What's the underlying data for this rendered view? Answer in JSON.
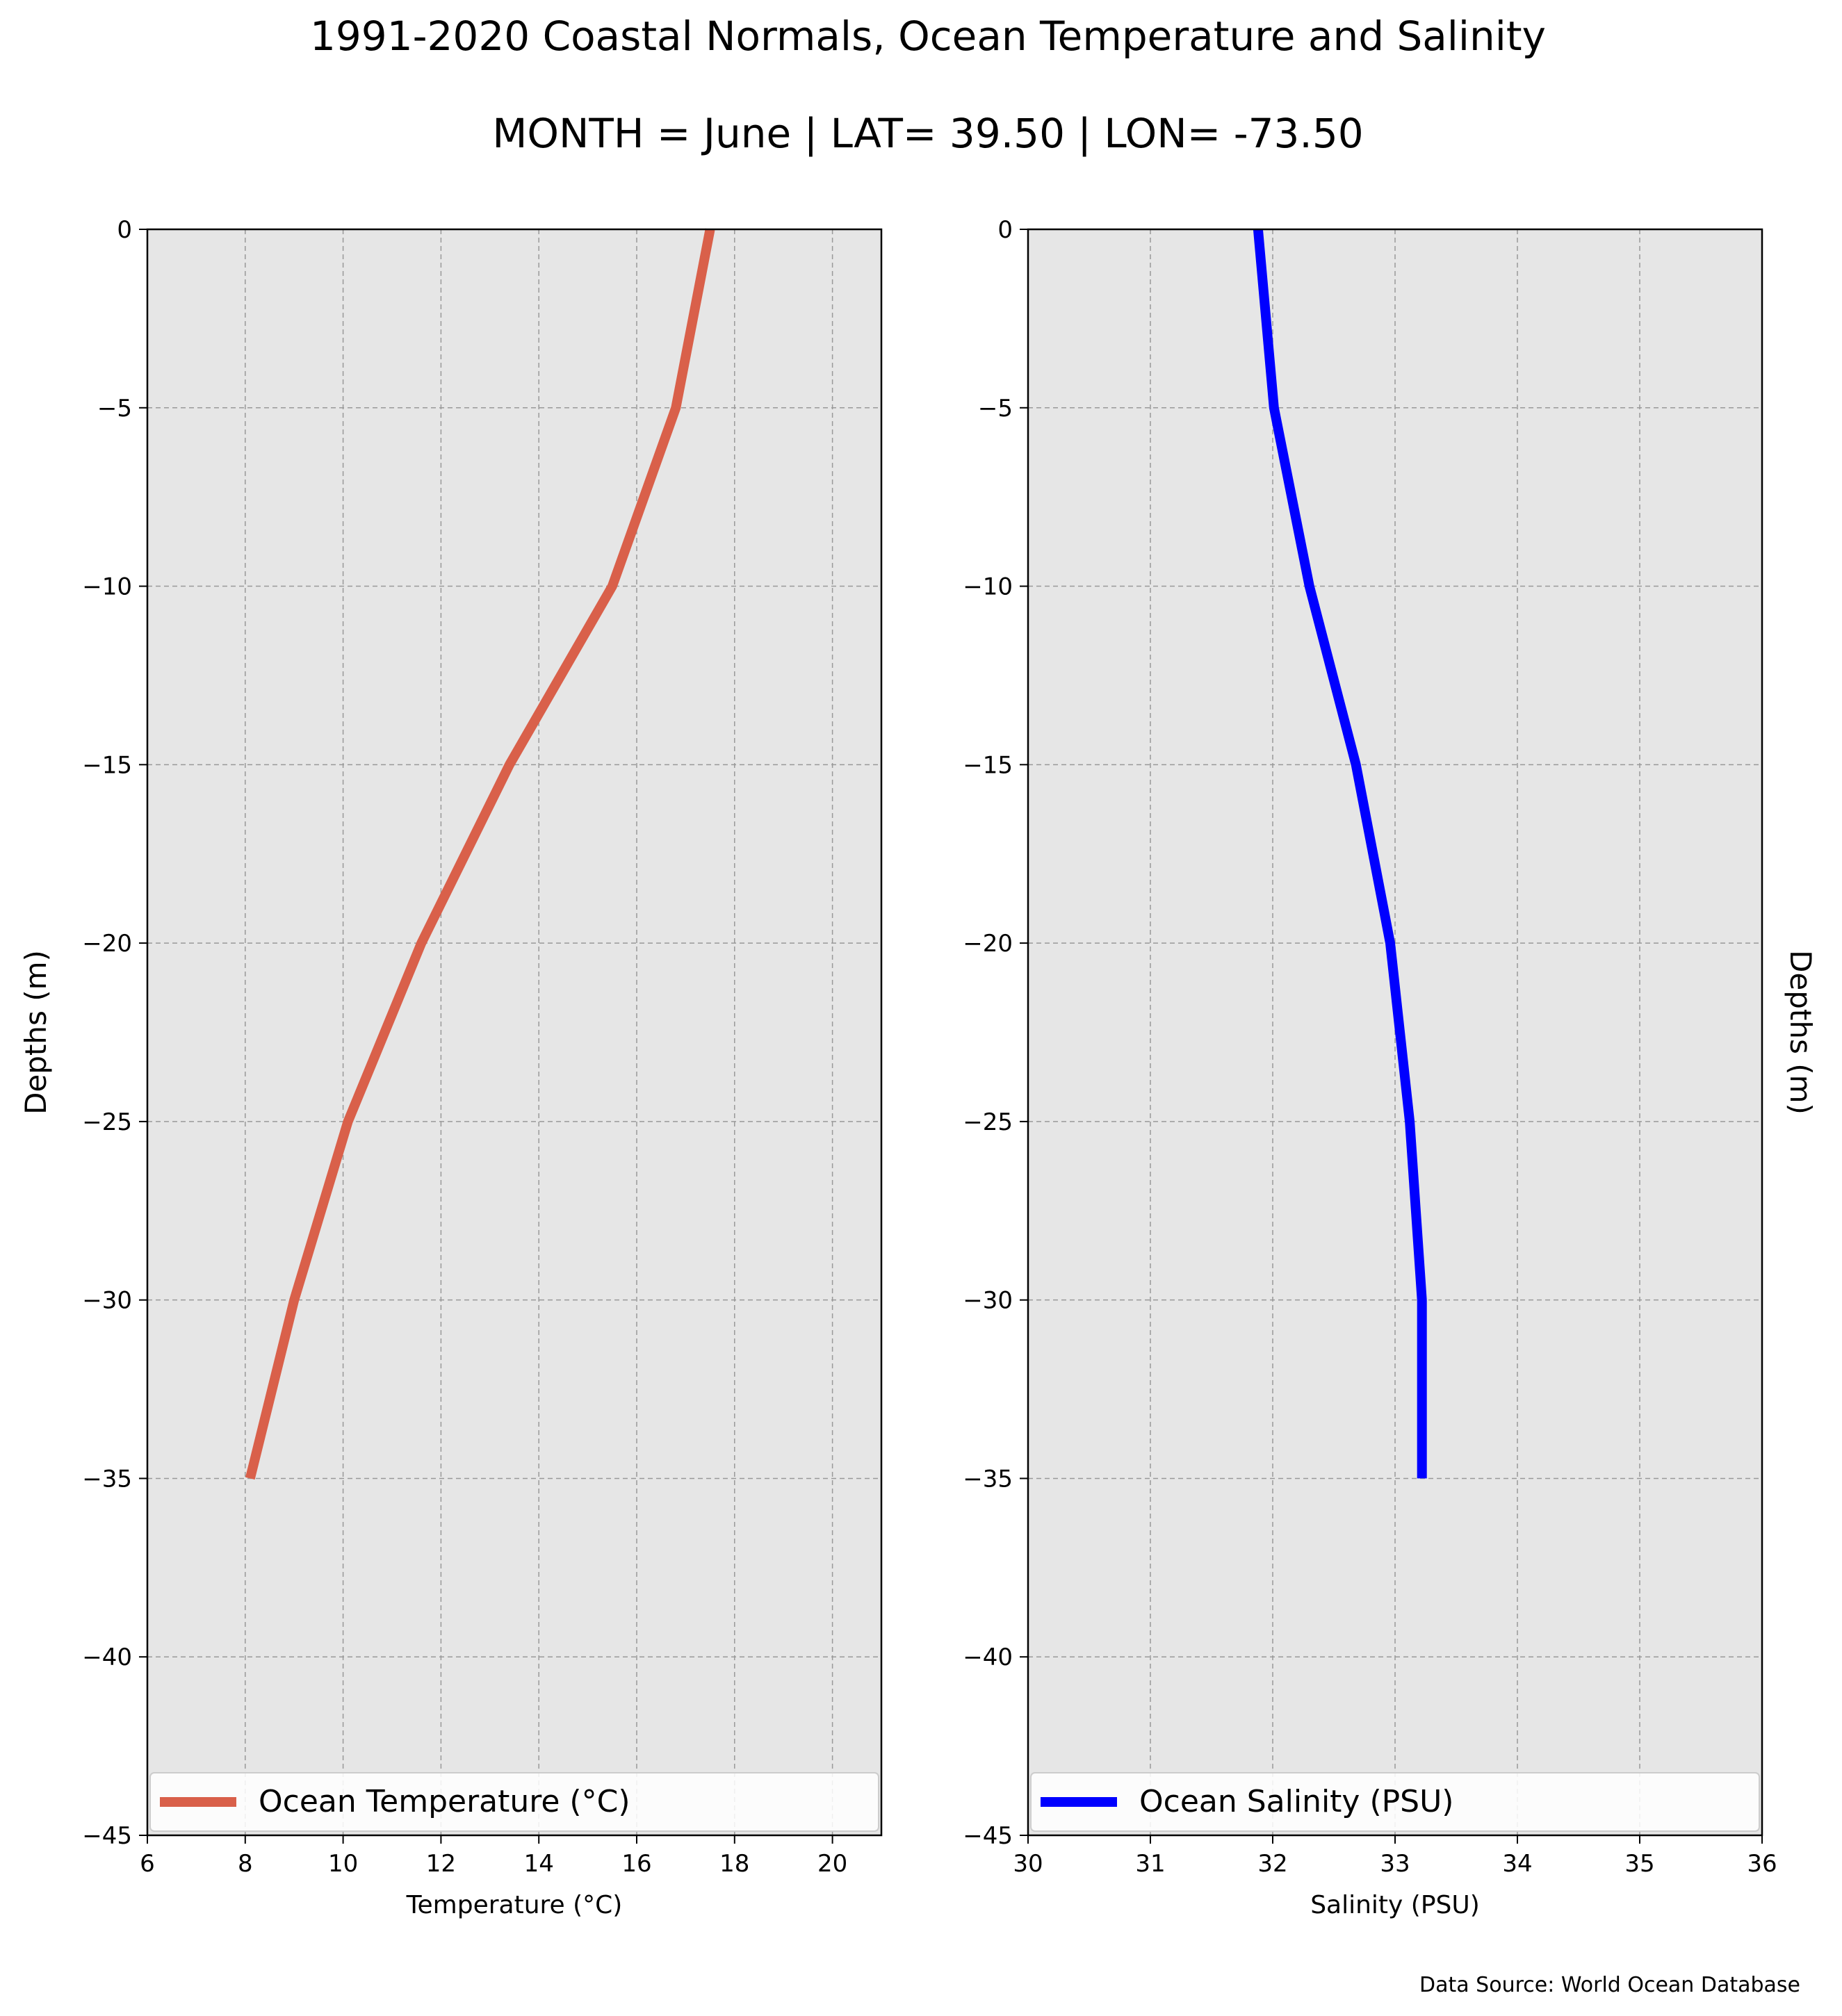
{
  "figure": {
    "title_line1": "1991-2020 Coastal Normals, Ocean Temperature and Salinity",
    "title_line2": "MONTH = June | LAT= 39.50 | LON= -73.50",
    "source_note": "Data Source: World Ocean Database"
  },
  "colors": {
    "temperature": "#d9604a",
    "salinity": "#0000ff",
    "panel_background": "#e6e6e6",
    "grid": "#999999"
  },
  "chart_data": [
    {
      "type": "line",
      "xlabel": "Temperature ($^\\circ$C)",
      "xlabel_display": "Temperature (°C)",
      "ylabel": "Depths (m)",
      "xlim": [
        6,
        21
      ],
      "ylim": [
        -45,
        0
      ],
      "x_ticks": [
        6,
        8,
        10,
        12,
        14,
        16,
        18,
        20
      ],
      "x_tick_labels": [
        "6",
        "8",
        "10",
        "12",
        "14",
        "16",
        "18",
        "20"
      ],
      "y_ticks": [
        0,
        -5,
        -10,
        -15,
        -20,
        -25,
        -30,
        -35,
        -40,
        -45
      ],
      "y_tick_labels": [
        "0",
        "−5",
        "−10",
        "−15",
        "−20",
        "−25",
        "−30",
        "−35",
        "−40",
        "−45"
      ],
      "grid": true,
      "legend_position": "bottom",
      "series": [
        {
          "name": "Ocean Temperature (°C)",
          "color": "#d9604a",
          "points": [
            {
              "x": 17.5,
              "y": 0
            },
            {
              "x": 16.8,
              "y": -5
            },
            {
              "x": 15.5,
              "y": -10
            },
            {
              "x": 13.4,
              "y": -15
            },
            {
              "x": 11.6,
              "y": -20
            },
            {
              "x": 10.1,
              "y": -25
            },
            {
              "x": 9.0,
              "y": -30
            },
            {
              "x": 8.1,
              "y": -35
            }
          ]
        }
      ]
    },
    {
      "type": "line",
      "xlabel": "Salinity (PSU)",
      "xlabel_display": "Salinity (PSU)",
      "ylabel": "Depths (m)",
      "xlim": [
        30,
        36
      ],
      "ylim": [
        -45,
        0
      ],
      "x_ticks": [
        30,
        31,
        32,
        33,
        34,
        35,
        36
      ],
      "x_tick_labels": [
        "30",
        "31",
        "32",
        "33",
        "34",
        "35",
        "36"
      ],
      "y_ticks": [
        0,
        -5,
        -10,
        -15,
        -20,
        -25,
        -30,
        -35,
        -40,
        -45
      ],
      "y_tick_labels": [
        "0",
        "−5",
        "−10",
        "−15",
        "−20",
        "−25",
        "−30",
        "−35",
        "−40",
        "−45"
      ],
      "grid": true,
      "legend_position": "bottom",
      "series": [
        {
          "name": "Ocean Salinity (PSU)",
          "color": "#0000ff",
          "points": [
            {
              "x": 31.88,
              "y": 0
            },
            {
              "x": 32.01,
              "y": -5
            },
            {
              "x": 32.3,
              "y": -10
            },
            {
              "x": 32.68,
              "y": -15
            },
            {
              "x": 32.96,
              "y": -20
            },
            {
              "x": 33.12,
              "y": -25
            },
            {
              "x": 33.22,
              "y": -30
            },
            {
              "x": 33.22,
              "y": -35
            }
          ]
        }
      ]
    }
  ]
}
